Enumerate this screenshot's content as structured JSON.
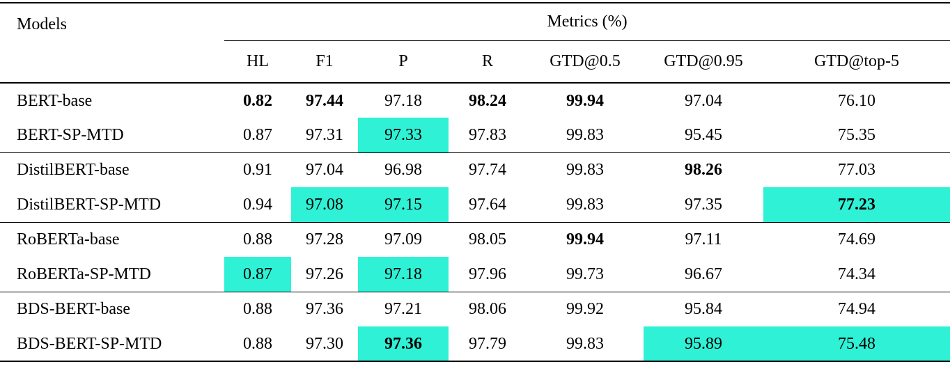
{
  "page": {
    "background": "#ffffff",
    "text_color": "#000000"
  },
  "table": {
    "models_header": "Models",
    "metrics_group_header": "Metrics (%)",
    "columns": [
      "HL",
      "F1",
      "P",
      "R",
      "GTD@0.5",
      "GTD@0.95",
      "GTD@top-5"
    ],
    "highlight_color": "#2FF1D6",
    "rows": [
      {
        "model": "BERT-base",
        "cells": [
          {
            "v": "0.82",
            "b": true
          },
          {
            "v": "97.44",
            "b": true
          },
          {
            "v": "97.18"
          },
          {
            "v": "98.24",
            "b": true
          },
          {
            "v": "99.94",
            "b": true
          },
          {
            "v": "97.04"
          },
          {
            "v": "76.10"
          }
        ]
      },
      {
        "model": "BERT-SP-MTD",
        "group_end": true,
        "cells": [
          {
            "v": "0.87"
          },
          {
            "v": "97.31"
          },
          {
            "v": "97.33",
            "h": true
          },
          {
            "v": "97.83"
          },
          {
            "v": "99.83"
          },
          {
            "v": "95.45"
          },
          {
            "v": "75.35"
          }
        ]
      },
      {
        "model": "DistilBERT-base",
        "cells": [
          {
            "v": "0.91"
          },
          {
            "v": "97.04"
          },
          {
            "v": "96.98"
          },
          {
            "v": "97.74"
          },
          {
            "v": "99.83"
          },
          {
            "v": "98.26",
            "b": true
          },
          {
            "v": "77.03"
          }
        ]
      },
      {
        "model": "DistilBERT-SP-MTD",
        "group_end": true,
        "cells": [
          {
            "v": "0.94"
          },
          {
            "v": "97.08",
            "h": true
          },
          {
            "v": "97.15",
            "h": true
          },
          {
            "v": "97.64"
          },
          {
            "v": "99.83"
          },
          {
            "v": "97.35"
          },
          {
            "v": "77.23",
            "b": true,
            "h": true
          }
        ]
      },
      {
        "model": "RoBERTa-base",
        "cells": [
          {
            "v": "0.88"
          },
          {
            "v": "97.28"
          },
          {
            "v": "97.09"
          },
          {
            "v": "98.05"
          },
          {
            "v": "99.94",
            "b": true
          },
          {
            "v": "97.11"
          },
          {
            "v": "74.69"
          }
        ]
      },
      {
        "model": "RoBERTa-SP-MTD",
        "group_end": true,
        "cells": [
          {
            "v": "0.87",
            "h": true
          },
          {
            "v": "97.26"
          },
          {
            "v": "97.18",
            "h": true
          },
          {
            "v": "97.96"
          },
          {
            "v": "99.73"
          },
          {
            "v": "96.67"
          },
          {
            "v": "74.34"
          }
        ]
      },
      {
        "model": "BDS-BERT-base",
        "cells": [
          {
            "v": "0.88"
          },
          {
            "v": "97.36"
          },
          {
            "v": "97.21"
          },
          {
            "v": "98.06"
          },
          {
            "v": "99.92"
          },
          {
            "v": "95.84"
          },
          {
            "v": "74.94"
          }
        ]
      },
      {
        "model": "BDS-BERT-SP-MTD",
        "cells": [
          {
            "v": "0.88"
          },
          {
            "v": "97.30"
          },
          {
            "v": "97.36",
            "b": true,
            "h": true
          },
          {
            "v": "97.79"
          },
          {
            "v": "99.83"
          },
          {
            "v": "95.89",
            "h": true
          },
          {
            "v": "75.48",
            "h": true
          }
        ]
      }
    ]
  }
}
